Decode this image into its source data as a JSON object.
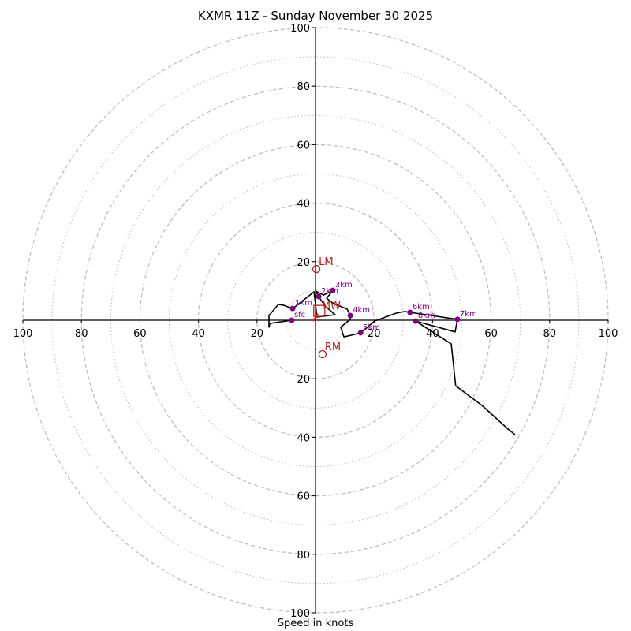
{
  "chart_data": {
    "type": "hodograph",
    "title": "KXMR 11Z - Sunday November 30 2025",
    "xlabel": "Speed in knots",
    "ylabel": "",
    "range": [
      -100,
      100
    ],
    "ring_major": [
      20,
      40,
      60,
      80,
      100
    ],
    "ring_minor": [
      10,
      30,
      50,
      70,
      90
    ],
    "x_ticks": [
      {
        "value": -100,
        "label": "100"
      },
      {
        "value": -80,
        "label": "80"
      },
      {
        "value": -60,
        "label": "60"
      },
      {
        "value": -40,
        "label": "40"
      },
      {
        "value": -20,
        "label": "20"
      },
      {
        "value": 20,
        "label": "20"
      },
      {
        "value": 40,
        "label": "40"
      },
      {
        "value": 60,
        "label": "60"
      },
      {
        "value": 80,
        "label": "80"
      },
      {
        "value": 100,
        "label": "100"
      }
    ],
    "y_ticks": [
      {
        "value": 100,
        "label": "100"
      },
      {
        "value": 80,
        "label": "80"
      },
      {
        "value": 60,
        "label": "60"
      },
      {
        "value": 40,
        "label": "40"
      },
      {
        "value": 20,
        "label": "20"
      },
      {
        "value": -20,
        "label": "20"
      },
      {
        "value": -40,
        "label": "40"
      },
      {
        "value": -60,
        "label": "60"
      },
      {
        "value": -80,
        "label": "80"
      },
      {
        "value": -100,
        "label": "100"
      }
    ],
    "trace": {
      "u": [
        -8.1,
        -15.6,
        -15.9,
        -15.9,
        -12.7,
        -10.8,
        -7.8,
        -0.5,
        0.5,
        6.7,
        3.2,
        1.1,
        0,
        2.7,
        5.9,
        3.8,
        6.2,
        10.8,
        11.9,
        11.9,
        8.6,
        9.7,
        12.4,
        15.4,
        20.2,
        27.5,
        30.5,
        32.3,
        48.5,
        47.7,
        34.2,
        46.4,
        47.9,
        56.9,
        65.8,
        68.2
      ],
      "v": [
        0,
        -1.1,
        -2.4,
        1.6,
        5.4,
        5.1,
        4.0,
        9.7,
        1.1,
        1.9,
        4.9,
        8.1,
        10.0,
        8.6,
        10.2,
        7.5,
        5.7,
        3.8,
        1.6,
        0.3,
        -2.4,
        -5.7,
        -5.1,
        -4.3,
        -0.3,
        2.4,
        3.0,
        2.7,
        0.3,
        -4.0,
        -0.3,
        -8.1,
        -22.4,
        -29.1,
        -37.2,
        -39.1
      ]
    },
    "height_markers": [
      {
        "label": "sfc",
        "u": -8.1,
        "v": 0.0
      },
      {
        "label": "1km",
        "u": -7.8,
        "v": 4.0
      },
      {
        "label": "2km",
        "u": 1.1,
        "v": 8.1
      },
      {
        "label": "3km",
        "u": 5.9,
        "v": 10.2
      },
      {
        "label": "4km",
        "u": 11.9,
        "v": 1.6
      },
      {
        "label": "5km",
        "u": 15.4,
        "v": -4.3
      },
      {
        "label": "6km",
        "u": 32.3,
        "v": 2.7
      },
      {
        "label": "7km",
        "u": 48.5,
        "v": 0.3
      },
      {
        "label": "8km",
        "u": 34.2,
        "v": -0.3
      }
    ],
    "storm_motion": [
      {
        "label": "LM",
        "u": 0.3,
        "v": 17.5,
        "marker": "circle"
      },
      {
        "label": "RM",
        "u": 2.4,
        "v": -11.6,
        "marker": "circle"
      },
      {
        "label": "MW",
        "u": 1.3,
        "v": 3.2,
        "marker": "square"
      }
    ],
    "storm_vector": {
      "u": 0.0,
      "v": 1.1,
      "color": "#ff0000"
    },
    "colors": {
      "trace": "#000000",
      "markers": "#800080",
      "storm": "#b22222",
      "rings": "#bbbbbb"
    }
  }
}
